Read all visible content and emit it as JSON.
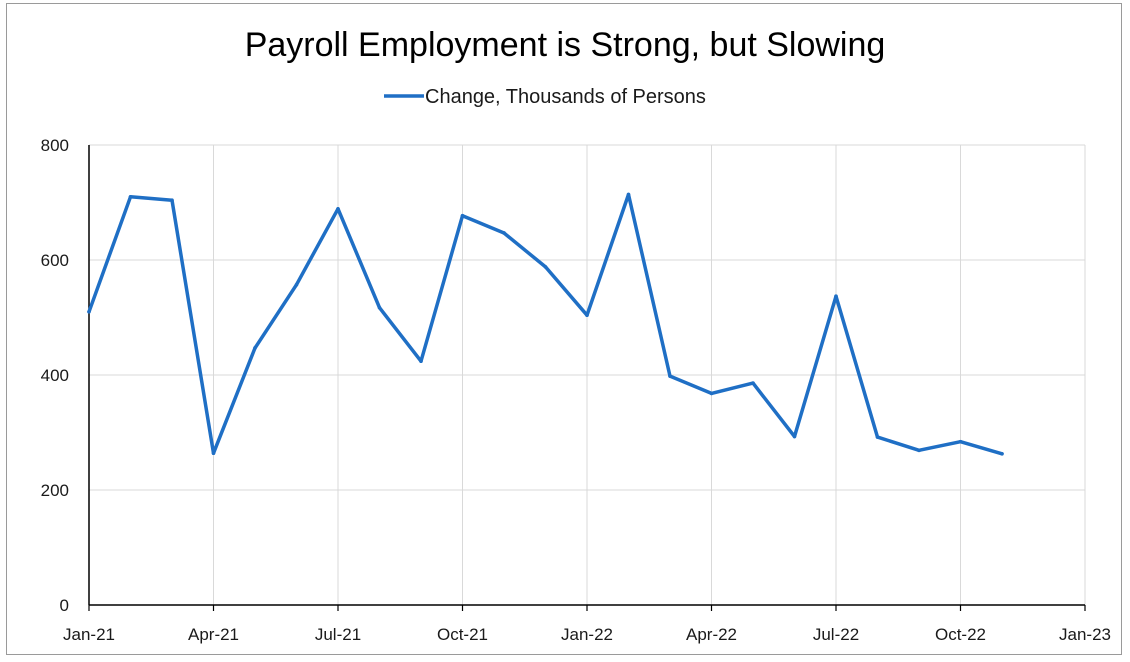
{
  "chart_data": {
    "type": "line",
    "title": "Payroll Employment is Strong, but Slowing",
    "xlabel": "",
    "ylabel": "",
    "legend_position": "top-center",
    "grid": true,
    "x_tick_labels": [
      "Jan-21",
      "Apr-21",
      "Jul-21",
      "Oct-21",
      "Jan-22",
      "Apr-22",
      "Jul-22",
      "Oct-22",
      "Jan-23"
    ],
    "x_range": [
      "2021-01",
      "2023-01"
    ],
    "y_ticks": [
      0,
      200,
      400,
      600,
      800
    ],
    "ylim": [
      0,
      800
    ],
    "x": [
      "2021-01",
      "2021-02",
      "2021-03",
      "2021-04",
      "2021-05",
      "2021-06",
      "2021-07",
      "2021-08",
      "2021-09",
      "2021-10",
      "2021-11",
      "2021-12",
      "2022-01",
      "2022-02",
      "2022-03",
      "2022-04",
      "2022-05",
      "2022-06",
      "2022-07",
      "2022-08",
      "2022-09",
      "2022-10",
      "2022-11"
    ],
    "series": [
      {
        "name": "Change, Thousands of Persons",
        "color": "#1f6fc5",
        "values": [
          510,
          710,
          704,
          264,
          447,
          557,
          689,
          517,
          424,
          677,
          647,
          588,
          504,
          714,
          398,
          368,
          386,
          293,
          537,
          292,
          269,
          284,
          263
        ]
      }
    ]
  }
}
